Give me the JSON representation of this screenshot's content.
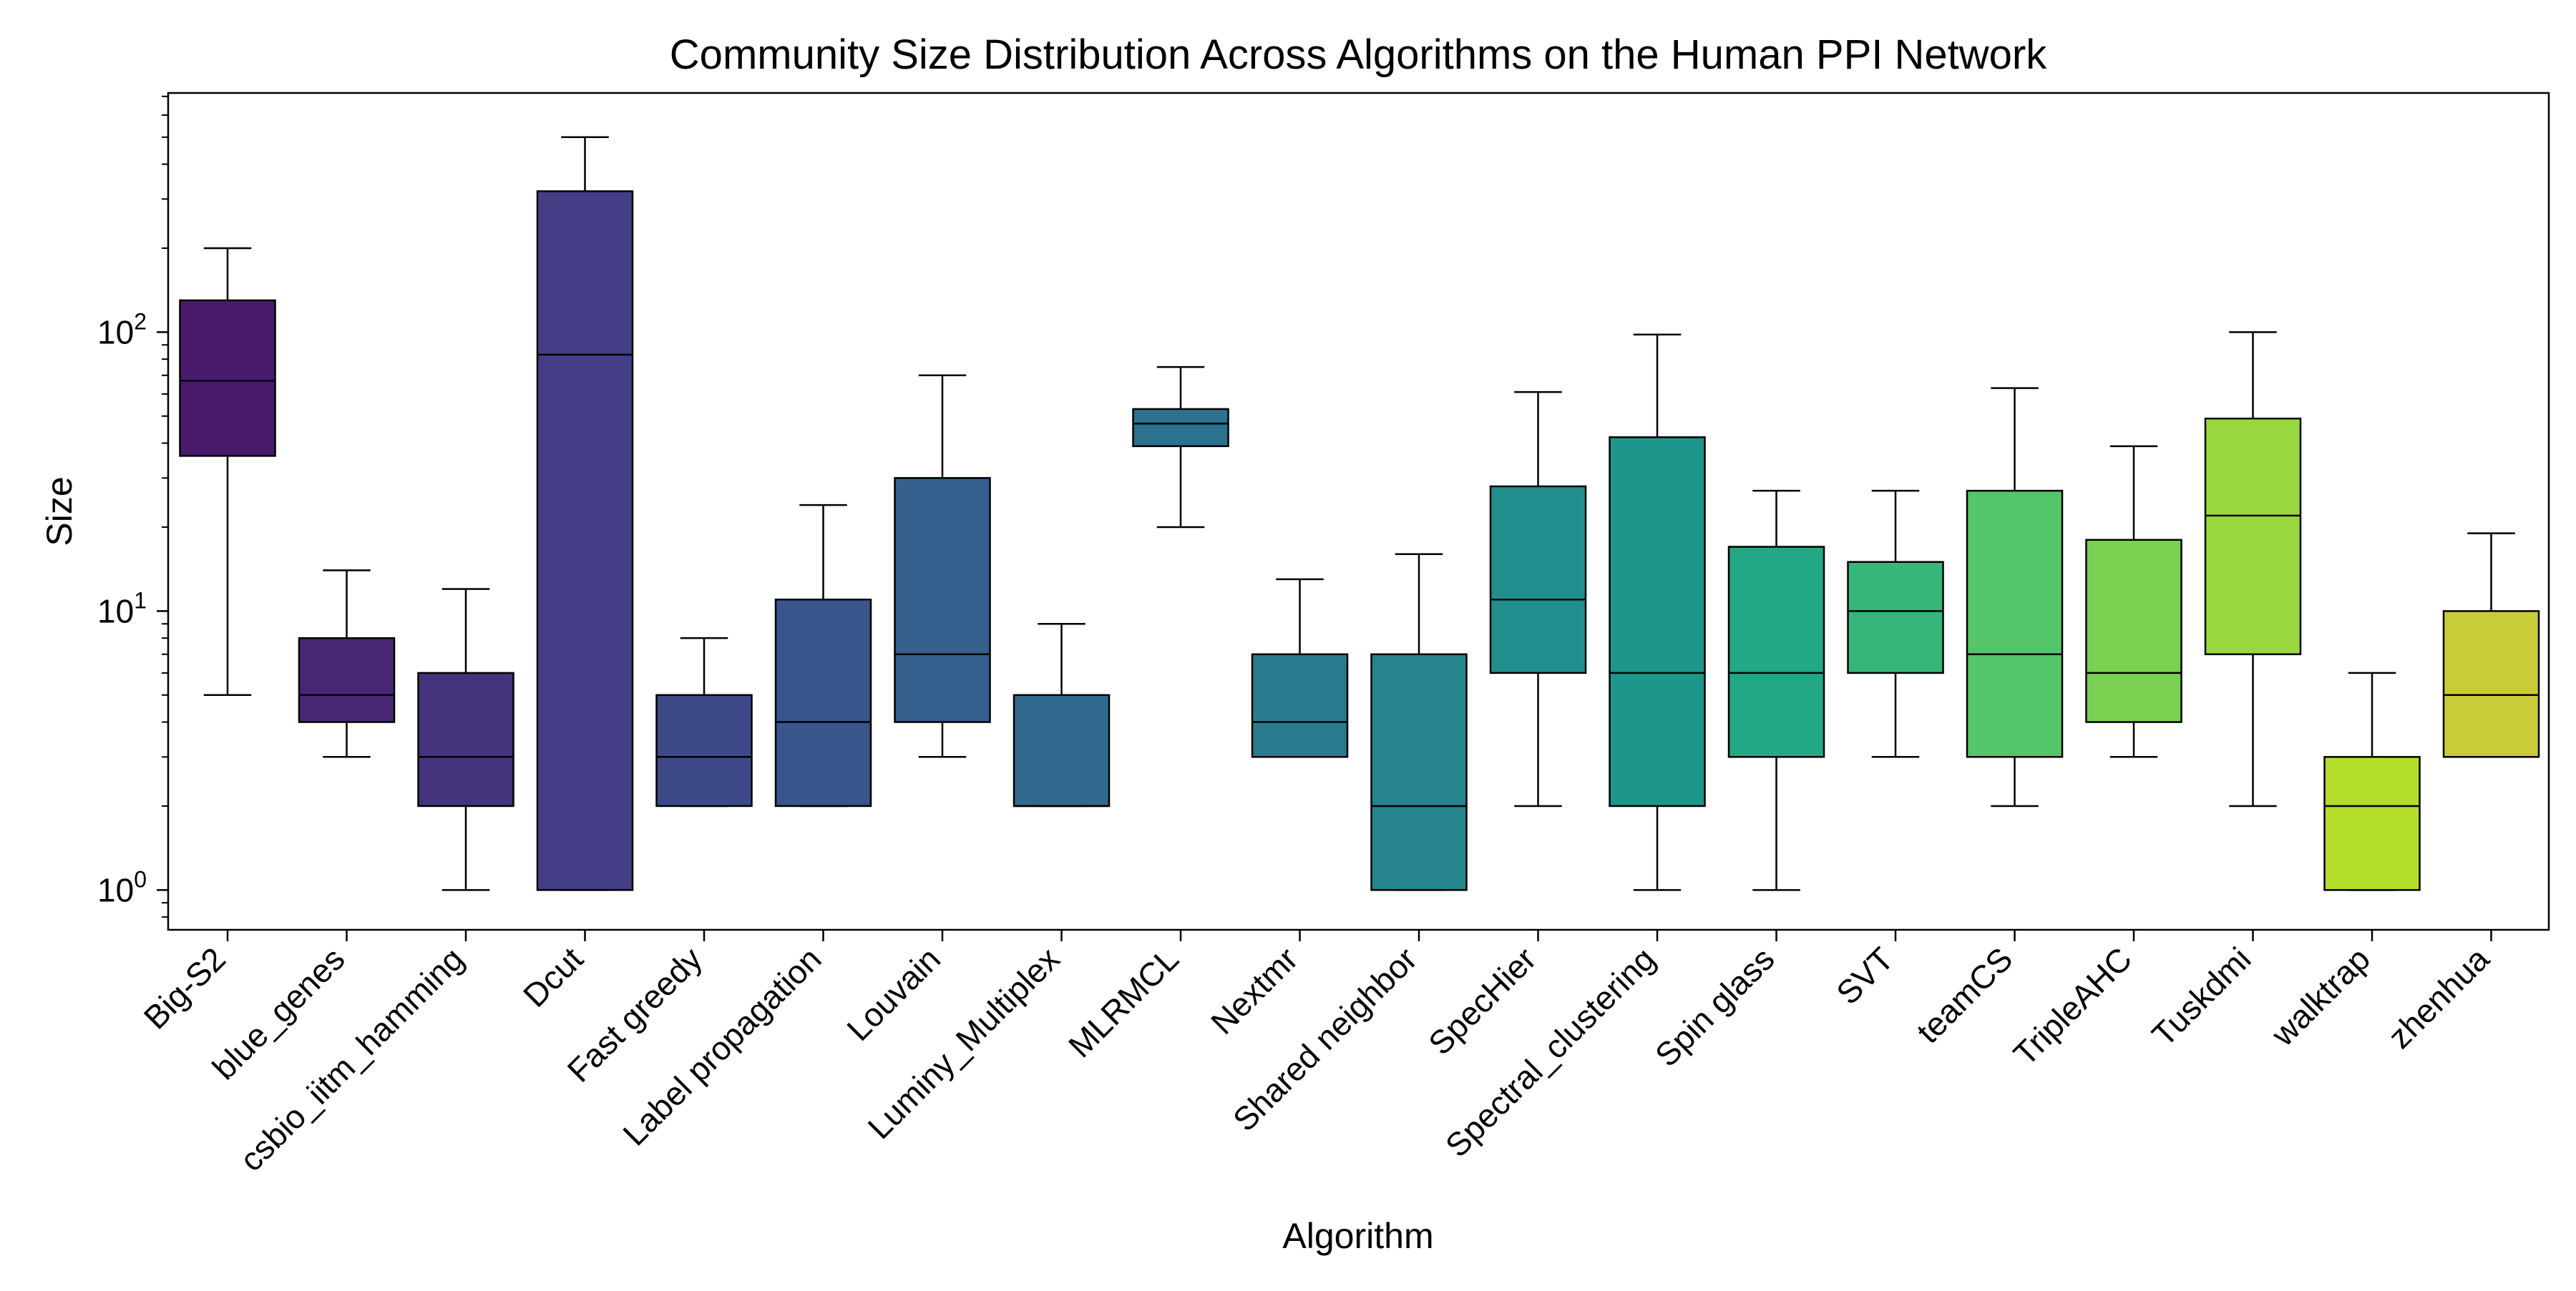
{
  "chart_data": {
    "type": "box",
    "title": "Community Size Distribution Across Algorithms on the Human PPI Network",
    "xlabel": "Algorithm",
    "ylabel": "Size",
    "yscale": "log",
    "ylim": [
      0.72,
      720
    ],
    "yticks": [
      {
        "value": 1,
        "label_base": "10",
        "label_exp": "0"
      },
      {
        "value": 10,
        "label_base": "10",
        "label_exp": "1"
      },
      {
        "value": 100,
        "label_base": "10",
        "label_exp": "2"
      }
    ],
    "grid": false,
    "legend": "none",
    "median_color": "#000000",
    "edge_color": "#000000",
    "categories": [
      "Big-S2",
      "blue_genes",
      "csbio_iitm_hamming",
      "Dcut",
      "Fast greedy",
      "Label propagation",
      "Louvain",
      "Luminy_Multiplex",
      "MLRMCL",
      "Nextmr",
      "Shared neighbor",
      "SpecHier",
      "Spectral_clustering",
      "Spin glass",
      "SVT",
      "teamCS",
      "TripleAHC",
      "Tuskdmi",
      "walktrap",
      "zhenhua"
    ],
    "boxes": [
      {
        "whislo": 5,
        "q1": 36,
        "med": 67,
        "q3": 130,
        "whishi": 200,
        "color": "#481a6c"
      },
      {
        "whislo": 3,
        "q1": 4,
        "med": 5,
        "q3": 8,
        "whishi": 14,
        "color": "#482777"
      },
      {
        "whislo": 1,
        "q1": 2,
        "med": 3,
        "q3": 6,
        "whishi": 12,
        "color": "#46337e"
      },
      {
        "whislo": 1,
        "q1": 1,
        "med": 83,
        "q3": 320,
        "whishi": 500,
        "color": "#433e85"
      },
      {
        "whislo": 2,
        "q1": 2,
        "med": 3,
        "q3": 5,
        "whishi": 8,
        "color": "#3e4989"
      },
      {
        "whislo": 2,
        "q1": 2,
        "med": 4,
        "q3": 11,
        "whishi": 24,
        "color": "#39558c"
      },
      {
        "whislo": 3,
        "q1": 4,
        "med": 7,
        "q3": 30,
        "whishi": 70,
        "color": "#355f8d"
      },
      {
        "whislo": 2,
        "q1": 2,
        "med": 2,
        "q3": 5,
        "whishi": 9,
        "color": "#31688e"
      },
      {
        "whislo": 20,
        "q1": 39,
        "med": 47,
        "q3": 53,
        "whishi": 75,
        "color": "#2c728e"
      },
      {
        "whislo": 3,
        "q1": 3,
        "med": 4,
        "q3": 7,
        "whishi": 13,
        "color": "#297b8e"
      },
      {
        "whislo": 1,
        "q1": 1,
        "med": 2,
        "q3": 7,
        "whishi": 16,
        "color": "#26848e"
      },
      {
        "whislo": 2,
        "q1": 6,
        "med": 11,
        "q3": 28,
        "whishi": 61,
        "color": "#228d8d"
      },
      {
        "whislo": 1,
        "q1": 2,
        "med": 6,
        "q3": 42,
        "whishi": 98,
        "color": "#1f968b"
      },
      {
        "whislo": 1,
        "q1": 3,
        "med": 6,
        "q3": 17,
        "whishi": 27,
        "color": "#22a884"
      },
      {
        "whislo": 3,
        "q1": 6,
        "med": 10,
        "q3": 15,
        "whishi": 27,
        "color": "#35b779"
      },
      {
        "whislo": 2,
        "q1": 3,
        "med": 7,
        "q3": 27,
        "whishi": 63,
        "color": "#54c568"
      },
      {
        "whislo": 3,
        "q1": 4,
        "med": 6,
        "q3": 18,
        "whishi": 39,
        "color": "#7ad151"
      },
      {
        "whislo": 2,
        "q1": 7,
        "med": 22,
        "q3": 49,
        "whishi": 100,
        "color": "#98d83e"
      },
      {
        "whislo": 1,
        "q1": 1,
        "med": 2,
        "q3": 3,
        "whishi": 6,
        "color": "#b5de2b"
      },
      {
        "whislo": 3,
        "q1": 3,
        "med": 5,
        "q3": 10,
        "whishi": 19,
        "color": "#c8cc38"
      }
    ]
  }
}
